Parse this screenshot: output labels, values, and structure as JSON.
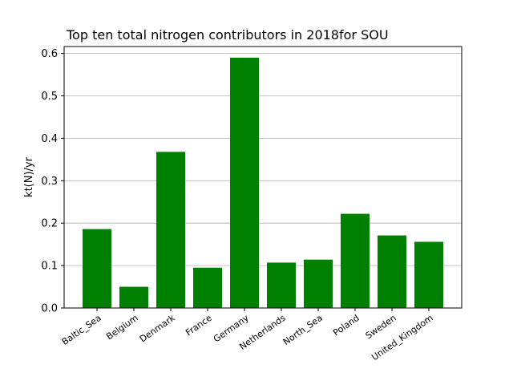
{
  "chart_data": {
    "type": "bar",
    "title": "Top ten total nitrogen contributors in 2018for  SOU",
    "xlabel": "",
    "ylabel": "kt(N)/yr",
    "categories": [
      "Baltic_Sea",
      "Belgium",
      "Denmark",
      "France",
      "Germany",
      "Netherlands",
      "North_Sea",
      "Poland",
      "Sweden",
      "United_Kingdom"
    ],
    "values": [
      0.186,
      0.05,
      0.368,
      0.095,
      0.59,
      0.107,
      0.114,
      0.222,
      0.171,
      0.156
    ],
    "ylim": [
      0,
      0.6
    ],
    "yticks": [
      "0.0",
      "0.1",
      "0.2",
      "0.3",
      "0.4",
      "0.5",
      "0.6"
    ],
    "grid": "y-axis",
    "bar_color": "#008000",
    "legend": "none"
  }
}
